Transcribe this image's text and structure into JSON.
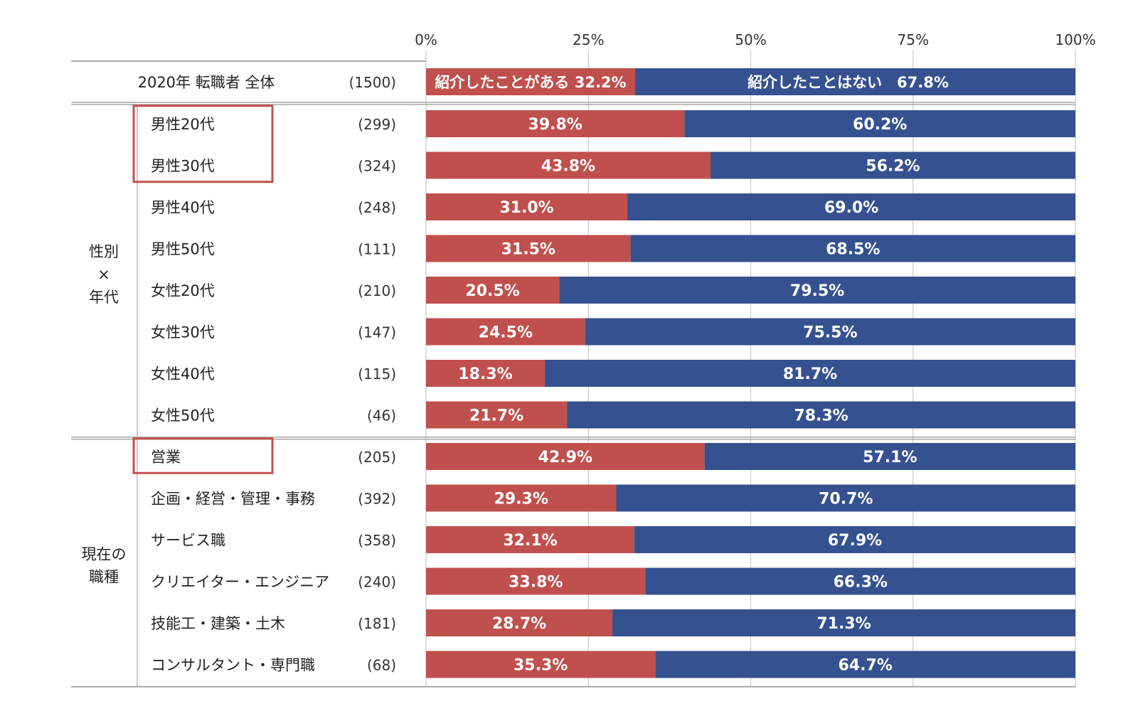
{
  "chart_data": {
    "type": "bar",
    "stacked": true,
    "orientation": "horizontal",
    "x_ticks": [
      "0%",
      "25%",
      "50%",
      "75%",
      "100%"
    ],
    "xlim": [
      0,
      100
    ],
    "grid": true,
    "legend": "none",
    "colors": {
      "referred": "#c0504d",
      "not_referred": "#36518f"
    },
    "total": {
      "label": "2020年 転職者 全体",
      "n": "(1500)",
      "referred": 32.2,
      "not_referred": 67.8,
      "referred_label": "紹介したことがある 32.2%",
      "not_referred_label": "紹介したことはない　67.8%"
    },
    "groups": [
      {
        "name_lines": [
          "性別",
          "×",
          "年代"
        ],
        "rows": [
          {
            "label": "男性20代",
            "n": "(299)",
            "referred": 39.8,
            "not_referred": 60.2,
            "highlight": true
          },
          {
            "label": "男性30代",
            "n": "(324)",
            "referred": 43.8,
            "not_referred": 56.2,
            "highlight": true
          },
          {
            "label": "男性40代",
            "n": "(248)",
            "referred": 31.0,
            "not_referred": 69.0
          },
          {
            "label": "男性50代",
            "n": "(111)",
            "referred": 31.5,
            "not_referred": 68.5
          },
          {
            "label": "女性20代",
            "n": "(210)",
            "referred": 20.5,
            "not_referred": 79.5
          },
          {
            "label": "女性30代",
            "n": "(147)",
            "referred": 24.5,
            "not_referred": 75.5
          },
          {
            "label": "女性40代",
            "n": "(115)",
            "referred": 18.3,
            "not_referred": 81.7
          },
          {
            "label": "女性50代",
            "n": "(46)",
            "referred": 21.7,
            "not_referred": 78.3
          }
        ]
      },
      {
        "name_lines": [
          "現在の",
          "職種"
        ],
        "rows": [
          {
            "label": "営業",
            "n": "(205)",
            "referred": 42.9,
            "not_referred": 57.1,
            "highlight": true
          },
          {
            "label": "企画・経営・管理・事務",
            "n": "(392)",
            "referred": 29.3,
            "not_referred": 70.7
          },
          {
            "label": "サービス職",
            "n": "(358)",
            "referred": 32.1,
            "not_referred": 67.9
          },
          {
            "label": "クリエイター・エンジニア",
            "n": "(240)",
            "referred": 33.8,
            "not_referred": 66.3
          },
          {
            "label": "技能工・建築・土木",
            "n": "(181)",
            "referred": 28.7,
            "not_referred": 71.3
          },
          {
            "label": "コンサルタント・専門職",
            "n": "(68)",
            "referred": 35.3,
            "not_referred": 64.7
          }
        ]
      }
    ]
  }
}
